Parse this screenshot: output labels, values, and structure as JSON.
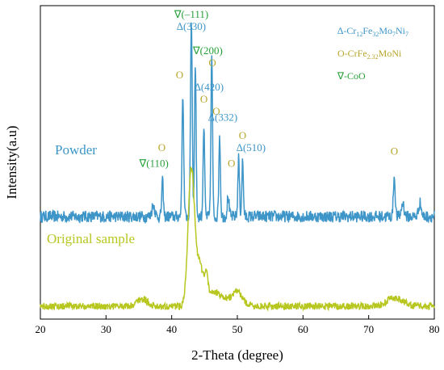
{
  "chart_data": {
    "type": "line",
    "xlabel": "2-Theta (degree)",
    "ylabel": "Intensity(a.u)",
    "xlim": [
      20,
      80
    ],
    "xticks": [
      "20",
      "30",
      "40",
      "50",
      "60",
      "70",
      "80"
    ],
    "grid": false,
    "colors": {
      "powder": "#3d95c8",
      "original": "#b7c71f",
      "cro_marker": "#b8a52a",
      "coo_marker": "#27a03a",
      "cofe_marker": "#3d95c8"
    },
    "legend": {
      "placement": "top-right",
      "entries": [
        {
          "symbol": "∆",
          "main": "-Cr",
          "parts": [
            [
              "12",
              "Fe"
            ],
            [
              "32",
              "Mo"
            ],
            [
              "7",
              "Ni"
            ],
            [
              "7",
              ""
            ]
          ],
          "color": "#3d95c8"
        },
        {
          "symbol": "O",
          "main": "-CrFe",
          "parts": [
            [
              "2.32",
              "MoNi"
            ]
          ],
          "color": "#b8a52a"
        },
        {
          "symbol": "∇",
          "main": "-CoO",
          "parts": [],
          "color": "#27a03a"
        }
      ]
    },
    "series": [
      {
        "name": "Powder",
        "color": "#3d95c8",
        "baseline": 0.0,
        "noise": 0.03,
        "peaks": [
          [
            37.2,
            0.06,
            0.22
          ],
          [
            38.6,
            0.18,
            0.12
          ],
          [
            41.7,
            0.62,
            0.13
          ],
          [
            43.0,
            1.0,
            0.13
          ],
          [
            43.6,
            0.78,
            0.12
          ],
          [
            44.9,
            0.45,
            0.12
          ],
          [
            46.1,
            0.82,
            0.12
          ],
          [
            47.3,
            0.42,
            0.12
          ],
          [
            48.6,
            0.1,
            0.14
          ],
          [
            50.2,
            0.3,
            0.12
          ],
          [
            50.8,
            0.28,
            0.12
          ],
          [
            73.9,
            0.2,
            0.14
          ],
          [
            75.2,
            0.07,
            0.2
          ],
          [
            77.8,
            0.07,
            0.2
          ]
        ]
      },
      {
        "name": "Original sample",
        "color": "#b7c71f",
        "baseline": 0.0,
        "noise": 0.025,
        "peaks": [
          [
            35.5,
            0.05,
            0.8
          ],
          [
            43.0,
            0.98,
            0.5
          ],
          [
            44.3,
            0.25,
            0.5
          ],
          [
            45.3,
            0.15,
            0.25
          ],
          [
            46.5,
            0.1,
            1.5
          ],
          [
            50.0,
            0.1,
            0.8
          ],
          [
            74.0,
            0.06,
            1.2
          ]
        ]
      }
    ],
    "annotations": [
      {
        "text": "∇(–111)",
        "x": 43.0,
        "color": "#27a03a",
        "row": 0
      },
      {
        "text": "∆(330)",
        "x": 43.0,
        "color": "#3d95c8",
        "row": 1
      },
      {
        "text": "∇(200)",
        "x": 45.5,
        "color": "#27a03a",
        "row": 3
      },
      {
        "text": "O",
        "x": 46.2,
        "color": "#b8a52a",
        "row": 4
      },
      {
        "text": "O",
        "x": 41.2,
        "color": "#b8a52a",
        "row": 5
      },
      {
        "text": "∆(420)",
        "x": 45.7,
        "color": "#3d95c8",
        "row": 6
      },
      {
        "text": "O",
        "x": 44.9,
        "color": "#b8a52a",
        "row": 7
      },
      {
        "text": "O",
        "x": 46.8,
        "color": "#b8a52a",
        "row": 8
      },
      {
        "text": "∆(332)",
        "x": 47.8,
        "color": "#3d95c8",
        "row": 8.5
      },
      {
        "text": "O",
        "x": 50.8,
        "color": "#b8a52a",
        "row": 10
      },
      {
        "text": "O",
        "x": 38.5,
        "color": "#b8a52a",
        "row": 11
      },
      {
        "text": "∆(510)",
        "x": 52.1,
        "color": "#3d95c8",
        "row": 11
      },
      {
        "text": "∇(110)",
        "x": 37.3,
        "color": "#27a03a",
        "row": 12.3
      },
      {
        "text": "O",
        "x": 49.1,
        "color": "#b8a52a",
        "row": 12.3
      },
      {
        "text": "O",
        "x": 73.9,
        "color": "#b8a52a",
        "row": 11.3
      }
    ]
  }
}
